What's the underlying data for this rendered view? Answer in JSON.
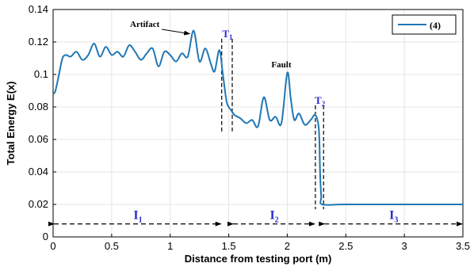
{
  "chart_data": {
    "type": "line",
    "xlabel": "Distance from testing port (m)",
    "ylabel": "Total Energy E(x)",
    "xlim": [
      0,
      3.5
    ],
    "ylim": [
      0,
      0.14
    ],
    "x_ticks": [
      "0",
      "0.5",
      "1",
      "1.5",
      "2",
      "2.5",
      "3",
      "3.5"
    ],
    "y_ticks": [
      "0",
      "0.02",
      "0.04",
      "0.06",
      "0.08",
      "0.1",
      "0.12",
      "0.14"
    ],
    "grid": true,
    "legend_position": "top-right",
    "series": [
      {
        "name": "(4)",
        "color": "#1f77b4",
        "x": [
          0,
          0.02,
          0.05,
          0.08,
          0.11,
          0.15,
          0.2,
          0.25,
          0.3,
          0.35,
          0.4,
          0.45,
          0.5,
          0.55,
          0.6,
          0.65,
          0.7,
          0.75,
          0.8,
          0.85,
          0.9,
          0.95,
          1.0,
          1.05,
          1.1,
          1.15,
          1.2,
          1.25,
          1.3,
          1.35,
          1.38,
          1.42,
          1.45,
          1.48,
          1.5,
          1.52,
          1.55,
          1.6,
          1.65,
          1.7,
          1.75,
          1.8,
          1.85,
          1.9,
          1.95,
          2.0,
          2.03,
          2.06,
          2.1,
          2.15,
          2.2,
          2.24,
          2.27,
          2.28,
          2.29,
          2.3,
          2.5,
          3.0,
          3.5
        ],
        "values": [
          0.088,
          0.09,
          0.1,
          0.11,
          0.112,
          0.111,
          0.114,
          0.109,
          0.112,
          0.119,
          0.111,
          0.117,
          0.112,
          0.114,
          0.111,
          0.118,
          0.114,
          0.109,
          0.113,
          0.116,
          0.105,
          0.114,
          0.112,
          0.108,
          0.113,
          0.111,
          0.127,
          0.108,
          0.116,
          0.106,
          0.102,
          0.115,
          0.1,
          0.084,
          0.08,
          0.078,
          0.075,
          0.073,
          0.07,
          0.072,
          0.068,
          0.086,
          0.072,
          0.074,
          0.07,
          0.101,
          0.085,
          0.072,
          0.076,
          0.069,
          0.072,
          0.075,
          0.066,
          0.04,
          0.025,
          0.02,
          0.02,
          0.02,
          0.02
        ]
      }
    ],
    "annotations": {
      "artifact": {
        "text": "Artifact",
        "x": 1.2,
        "y": 0.127
      },
      "fault": {
        "text": "Fault",
        "x": 2.0,
        "y": 0.101
      }
    },
    "thresholds": [
      {
        "label": "T",
        "sub": "1",
        "x1": 1.44,
        "x2": 1.53,
        "y_top": 0.122,
        "y_bottom": 0.064
      },
      {
        "label": "T",
        "sub": "2",
        "x1": 2.24,
        "x2": 2.31,
        "y_top": 0.081,
        "y_bottom": 0.017
      }
    ],
    "intervals": [
      {
        "label": "I",
        "sub": "1",
        "x_start": 0,
        "x_end": 1.44,
        "y": 0.008
      },
      {
        "label": "I",
        "sub": "2",
        "x_start": 1.53,
        "x_end": 2.24,
        "y": 0.008
      },
      {
        "label": "I",
        "sub": "3",
        "x_start": 2.31,
        "x_end": 3.5,
        "y": 0.008
      }
    ]
  }
}
